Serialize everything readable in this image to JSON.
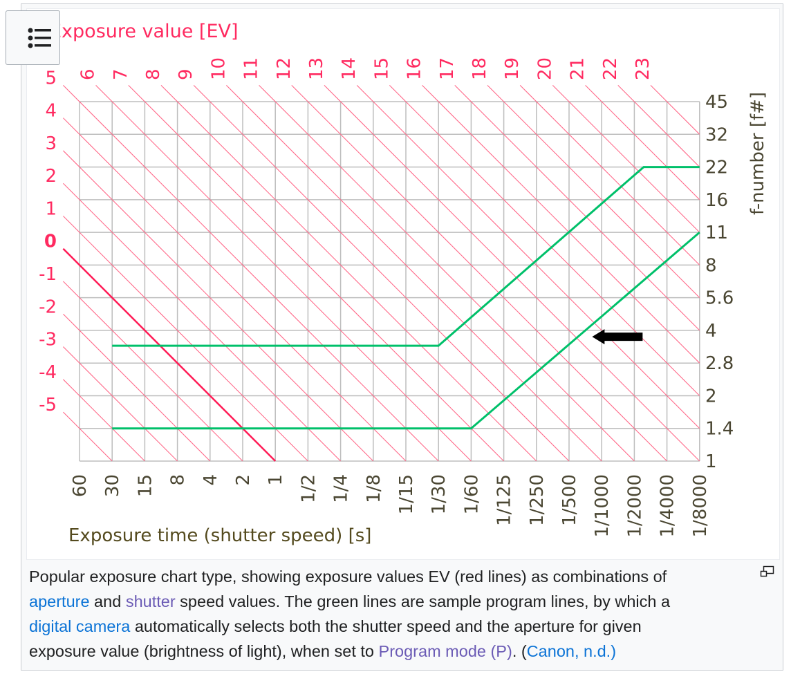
{
  "colors": {
    "ev_lines": "#ff6a8a",
    "ev_zero_line": "#ff1a55",
    "ev_labels": "#ff2a60",
    "program_lines": "#00c06a",
    "grid": "#bdbdbd",
    "f_labels": "#4a4632",
    "x_title": "#544a1e",
    "arrow": "#000000"
  },
  "menu_button": {
    "icon": "list-icon"
  },
  "chart_data": {
    "type": "line",
    "title": "Exposure value [EV]",
    "xlabel": "Exposure time (shutter speed) [s]",
    "ylabel": "f-number [f#]",
    "x_ticks": [
      "60",
      "30",
      "15",
      "8",
      "4",
      "2",
      "1",
      "1/2",
      "1/4",
      "1/8",
      "1/15",
      "1/30",
      "1/60",
      "1/125",
      "1/250",
      "1/500",
      "1/1000",
      "1/2000",
      "1/4000",
      "1/8000"
    ],
    "y_ticks": [
      "1",
      "1.4",
      "2",
      "2.8",
      "4",
      "5.6",
      "8",
      "11",
      "16",
      "22",
      "32",
      "45"
    ],
    "x_scale": "log2, shutter speed decreasing to the right",
    "y_scale": "log, one stop per gridline",
    "grid": true,
    "ev_lines": {
      "left_labels": [
        "5",
        "4",
        "3",
        "2",
        "1",
        "0",
        "-1",
        "-2",
        "-3",
        "-4",
        "-5"
      ],
      "top_labels": [
        "6",
        "7",
        "8",
        "9",
        "10",
        "11",
        "12",
        "13",
        "14",
        "15",
        "16",
        "17",
        "18",
        "19",
        "20",
        "21",
        "22",
        "23"
      ],
      "range": [
        -5,
        23
      ],
      "highlighted": 0
    },
    "series": [
      {
        "points": [
          {
            "shutter": "30",
            "f": 3.4
          },
          {
            "shutter": "1/30",
            "f": 3.4
          },
          {
            "shutter": "1/2500",
            "f": 22
          },
          {
            "shutter": "1/8000",
            "f": 22
          }
        ]
      },
      {
        "points": [
          {
            "shutter": "30",
            "f": 1.4
          },
          {
            "shutter": "1/60",
            "f": 1.4
          },
          {
            "shutter": "1/8000",
            "f": 11
          }
        ]
      }
    ],
    "annotations": [
      {
        "type": "arrow",
        "direction": "left",
        "at": {
          "shutter": "1/800",
          "f": 3.4
        }
      }
    ]
  },
  "caption": {
    "t1": "Popular exposure chart type, showing exposure values EV (red lines) as combinations of",
    "link_aperture": "aperture",
    "t2": " and ",
    "link_shutter": "shutter",
    "t3": " speed values. The green lines are sample program lines, by which a",
    "link_digital_camera": "digital camera",
    "t4": " automatically selects both the shutter speed and the aperture for given",
    "t5": "exposure value (brightness of light), when set to ",
    "link_program_mode": "Program mode (P)",
    "t6": ". (",
    "link_canon": "Canon, n.d.)"
  },
  "enlarge_icon": "enlarge-icon"
}
